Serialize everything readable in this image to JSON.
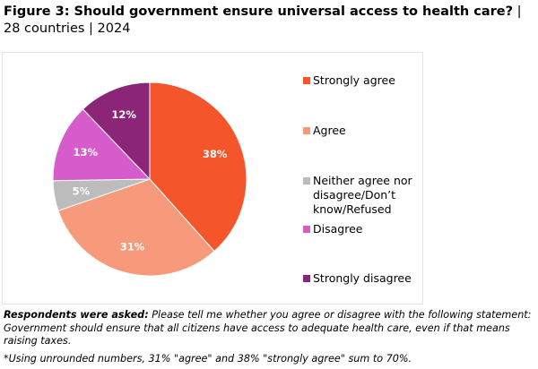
{
  "title": {
    "main": "Figure 3: Should government ensure universal access to health care?",
    "suffix": " | 28 countries | 2024"
  },
  "chart_data": {
    "type": "pie",
    "title": "Figure 3: Should government ensure universal access to health care? | 28 countries | 2024",
    "legend_position": "right",
    "categories": [
      "Strongly agree",
      "Agree",
      "Neither agree nor disagree/Don't know/Refused",
      "Disagree",
      "Strongly disagree"
    ],
    "values": [
      38,
      31,
      5,
      13,
      12
    ],
    "labels": [
      "38%",
      "31%",
      "5%",
      "13%",
      "12%"
    ],
    "colors": [
      "#f4552a",
      "#f69a7b",
      "#bcbcbc",
      "#d65ccb",
      "#8b2578"
    ]
  },
  "legend": {
    "items": [
      {
        "label": "Strongly agree",
        "color": "#f4552a"
      },
      {
        "label": "Agree",
        "color": "#f69a7b"
      },
      {
        "label": "Neither agree nor disagree/Don’t know/Refused",
        "color": "#bcbcbc"
      },
      {
        "label": "Disagree",
        "color": "#d65ccb"
      },
      {
        "label": "Strongly disagree",
        "color": "#8b2578"
      }
    ]
  },
  "notes": {
    "question_label": "Respondents were asked:",
    "question_text": " Please tell me whether you agree or disagree with the following statement: Government should ensure that all citizens have access to adequate health care, even if that means raising taxes.",
    "footnote": "*Using unrounded numbers, 31% \"agree\" and 38% \"strongly agree\" sum to 70%."
  }
}
